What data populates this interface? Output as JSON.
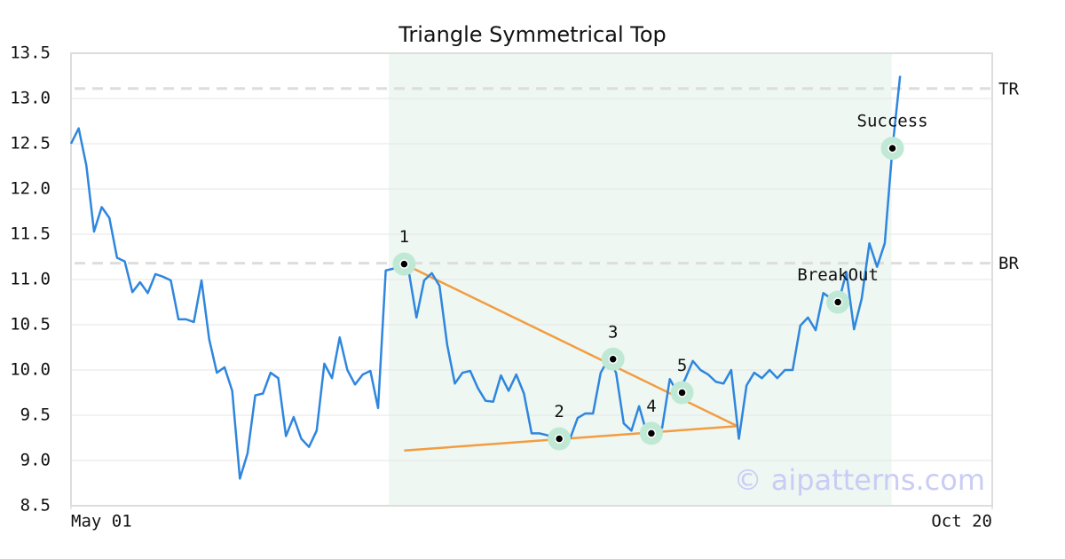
{
  "chart_data": {
    "type": "line",
    "title": "Triangle Symmetrical Top",
    "x": [
      0,
      1,
      2,
      3,
      4,
      5,
      6,
      7,
      8,
      9,
      10,
      11,
      12,
      13,
      14,
      15,
      16,
      17,
      18,
      19,
      20,
      21,
      22,
      23,
      24,
      25,
      26,
      27,
      28,
      29,
      30,
      31,
      32,
      33,
      34,
      35,
      36,
      37,
      38,
      39,
      40,
      41,
      42,
      43,
      44,
      45,
      46,
      47,
      48,
      49,
      50,
      51,
      52,
      53,
      54,
      55,
      56,
      57,
      58,
      59,
      60,
      61,
      62,
      63,
      64,
      65,
      66,
      67,
      68,
      69,
      70,
      71,
      72,
      73,
      74,
      75,
      76,
      77,
      78,
      79,
      80,
      81,
      82,
      83,
      84,
      85,
      86,
      87,
      88,
      89,
      90,
      91,
      92,
      93,
      94,
      95,
      96,
      97,
      98,
      99,
      100,
      101,
      102,
      103,
      104,
      105,
      106,
      107,
      108
    ],
    "values": [
      12.5,
      12.67,
      12.26,
      11.53,
      11.8,
      11.68,
      11.24,
      11.2,
      10.86,
      10.97,
      10.85,
      11.06,
      11.03,
      10.99,
      10.56,
      10.56,
      10.53,
      10.99,
      10.34,
      9.97,
      10.03,
      9.77,
      8.8,
      9.08,
      9.72,
      9.74,
      9.97,
      9.91,
      9.27,
      9.48,
      9.24,
      9.15,
      9.33,
      10.07,
      9.91,
      10.36,
      10.0,
      9.84,
      9.95,
      9.99,
      9.58,
      11.1,
      11.12,
      11.17,
      11.09,
      10.58,
      10.99,
      11.07,
      10.93,
      10.28,
      9.85,
      9.97,
      9.99,
      9.8,
      9.66,
      9.65,
      9.94,
      9.77,
      9.95,
      9.74,
      9.3,
      9.3,
      9.28,
      9.24,
      9.24,
      9.24,
      9.47,
      9.52,
      9.52,
      9.97,
      10.12,
      9.97,
      9.41,
      9.33,
      9.6,
      9.3,
      9.38,
      9.36,
      9.9,
      9.75,
      9.9,
      10.1,
      10.0,
      9.95,
      9.87,
      9.85,
      10.0,
      9.24,
      9.83,
      9.97,
      9.91,
      10.0,
      9.91,
      10.0,
      10.0,
      10.49,
      10.58,
      10.44,
      10.85,
      10.79,
      10.75,
      11.08,
      10.45,
      10.79,
      11.4,
      11.14,
      11.4,
      12.45,
      13.25
    ],
    "color": "#2e86de",
    "xlim": [
      0,
      120
    ],
    "xticks": [
      {
        "value": 0,
        "label": "May 01"
      },
      {
        "value": 120,
        "label": "Oct 20"
      }
    ],
    "ylim": [
      8.5,
      13.5
    ],
    "yticks": [
      8.5,
      {
        "value": 9,
        "label": "9.0"
      },
      9.5,
      {
        "value": 10,
        "label": "10.0"
      },
      10.5,
      {
        "value": 11,
        "label": "11.0"
      },
      11.5,
      {
        "value": 12,
        "label": "12.0"
      },
      12.5,
      {
        "value": 13,
        "label": "13.0"
      },
      13.5
    ],
    "grid": true,
    "shaded_range": [
      41.4,
      106.9
    ],
    "levels": [
      {
        "label": "TR",
        "value": 13.11
      },
      {
        "label": "BR",
        "value": 11.18
      }
    ],
    "trendlines": [
      {
        "color": "#f39c40",
        "x": [
          43.4,
          86.8
        ],
        "y": [
          11.17,
          9.38
        ]
      },
      {
        "color": "#f39c40",
        "x": [
          43.4,
          86.8
        ],
        "y": [
          9.11,
          9.38
        ]
      }
    ],
    "annotations": [
      {
        "label": "1",
        "x": 43.4,
        "y": 11.17
      },
      {
        "label": "2",
        "x": 63.6,
        "y": 9.24
      },
      {
        "label": "3",
        "x": 70.6,
        "y": 10.12
      },
      {
        "label": "4",
        "x": 75.6,
        "y": 9.3
      },
      {
        "label": "5",
        "x": 79.6,
        "y": 9.75
      },
      {
        "label": "BreakOut",
        "x": 99.9,
        "y": 10.75
      },
      {
        "label": "Success",
        "x": 107,
        "y": 12.45
      }
    ],
    "watermark": "© aipatterns.com"
  }
}
